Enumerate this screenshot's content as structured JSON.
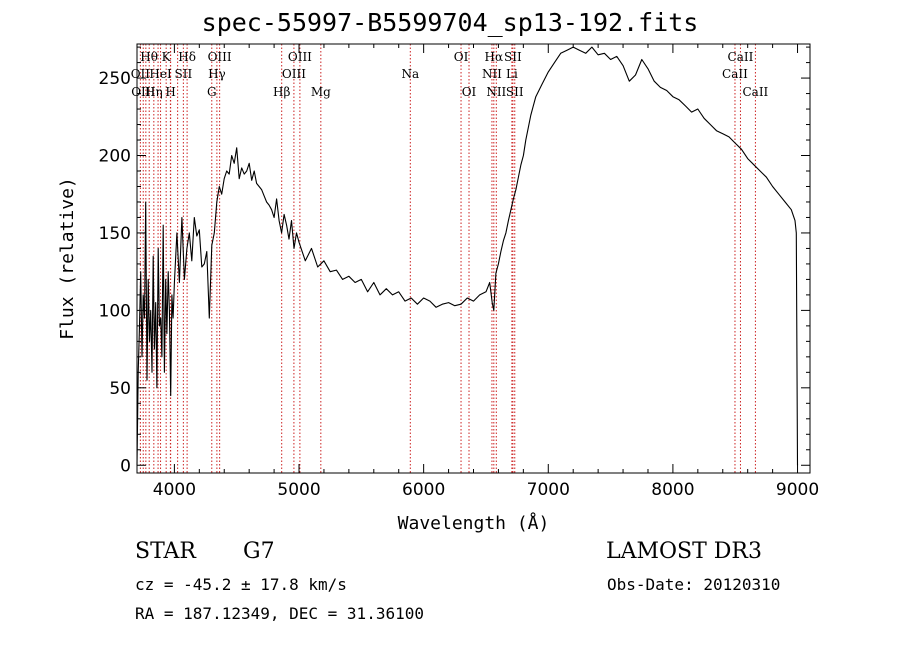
{
  "chart_data": {
    "type": "line",
    "title": "spec-55997-B5599704_sp13-192.fits",
    "xlabel": "Wavelength (Å)",
    "ylabel": "Flux (relative)",
    "xlim": [
      3700,
      9100
    ],
    "ylim": [
      -5,
      272
    ],
    "xticks": [
      4000,
      5000,
      6000,
      7000,
      8000,
      9000
    ],
    "yticks": [
      0,
      50,
      100,
      150,
      200,
      250
    ],
    "grid": false,
    "series": [
      {
        "name": "flux",
        "x": [
          3700,
          3710,
          3720,
          3730,
          3740,
          3750,
          3760,
          3770,
          3780,
          3790,
          3800,
          3810,
          3820,
          3830,
          3840,
          3850,
          3860,
          3870,
          3880,
          3890,
          3900,
          3910,
          3920,
          3930,
          3940,
          3950,
          3960,
          3970,
          3980,
          3990,
          4000,
          4020,
          4040,
          4060,
          4080,
          4100,
          4120,
          4140,
          4160,
          4180,
          4200,
          4220,
          4240,
          4260,
          4280,
          4300,
          4320,
          4340,
          4360,
          4380,
          4400,
          4420,
          4440,
          4460,
          4480,
          4500,
          4520,
          4540,
          4560,
          4580,
          4600,
          4620,
          4640,
          4660,
          4680,
          4700,
          4720,
          4740,
          4760,
          4780,
          4800,
          4820,
          4840,
          4860,
          4880,
          4900,
          4920,
          4940,
          4960,
          4980,
          5000,
          5050,
          5100,
          5150,
          5200,
          5250,
          5300,
          5350,
          5400,
          5450,
          5500,
          5550,
          5600,
          5650,
          5700,
          5750,
          5800,
          5850,
          5900,
          5950,
          6000,
          6050,
          6100,
          6150,
          6200,
          6250,
          6300,
          6350,
          6400,
          6450,
          6500,
          6530,
          6550,
          6563,
          6580,
          6600,
          6620,
          6640,
          6660,
          6680,
          6700,
          6720,
          6740,
          6760,
          6780,
          6800,
          6820,
          6840,
          6860,
          6880,
          6900,
          6950,
          7000,
          7050,
          7100,
          7150,
          7200,
          7250,
          7300,
          7350,
          7400,
          7450,
          7500,
          7550,
          7600,
          7650,
          7700,
          7750,
          7800,
          7850,
          7900,
          7950,
          8000,
          8050,
          8100,
          8150,
          8200,
          8250,
          8300,
          8350,
          8400,
          8450,
          8500,
          8550,
          8600,
          8650,
          8700,
          8750,
          8800,
          8850,
          8900,
          8950,
          8980,
          8990,
          9000
        ],
        "values": [
          0,
          60,
          90,
          125,
          70,
          110,
          95,
          170,
          55,
          120,
          80,
          100,
          60,
          135,
          75,
          105,
          50,
          140,
          90,
          95,
          70,
          155,
          60,
          120,
          85,
          125,
          100,
          45,
          110,
          95,
          118,
          150,
          118,
          160,
          120,
          140,
          150,
          132,
          160,
          148,
          152,
          128,
          130,
          138,
          95,
          142,
          150,
          170,
          180,
          175,
          185,
          190,
          188,
          200,
          195,
          205,
          185,
          192,
          188,
          190,
          195,
          184,
          190,
          182,
          180,
          178,
          174,
          170,
          168,
          165,
          160,
          172,
          158,
          150,
          162,
          155,
          146,
          158,
          140,
          150,
          144,
          132,
          140,
          128,
          132,
          125,
          126,
          120,
          122,
          118,
          120,
          112,
          118,
          110,
          114,
          110,
          112,
          106,
          108,
          104,
          108,
          106,
          102,
          104,
          105,
          103,
          104,
          108,
          106,
          110,
          112,
          118,
          105,
          100,
          124,
          130,
          138,
          145,
          150,
          158,
          165,
          172,
          178,
          186,
          194,
          200,
          210,
          218,
          226,
          232,
          238,
          246,
          254,
          260,
          266,
          268,
          270,
          268,
          266,
          270,
          265,
          266,
          262,
          264,
          258,
          248,
          252,
          262,
          256,
          248,
          244,
          242,
          238,
          236,
          232,
          228,
          230,
          224,
          220,
          216,
          214,
          212,
          208,
          204,
          198,
          194,
          190,
          186,
          180,
          175,
          170,
          165,
          158,
          150,
          0
        ],
        "color": "#000000"
      }
    ],
    "line_markers": {
      "color": "#cc2222",
      "wavelengths": [
        3727,
        3750,
        3771,
        3798,
        3835,
        3869,
        3889,
        3934,
        3968,
        3970,
        4026,
        4072,
        4102,
        4300,
        4341,
        4363,
        4861,
        4959,
        5007,
        5175,
        5893,
        6300,
        6364,
        6548,
        6563,
        6583,
        6708,
        6716,
        6731,
        8498,
        8542,
        8662
      ]
    },
    "annotations": [
      {
        "text": "Hθ",
        "wl": 3797,
        "row": 1
      },
      {
        "text": "K",
        "wl": 3934,
        "row": 1
      },
      {
        "text": "Hδ",
        "wl": 4102,
        "row": 1
      },
      {
        "text": "OIII",
        "wl": 4363,
        "row": 1
      },
      {
        "text": "OIII",
        "wl": 5007,
        "row": 1
      },
      {
        "text": "OI",
        "wl": 6300,
        "row": 1
      },
      {
        "text": "Hα",
        "wl": 6563,
        "row": 1
      },
      {
        "text": "SII",
        "wl": 6716,
        "row": 1
      },
      {
        "text": "CaII",
        "wl": 8542,
        "row": 1
      },
      {
        "text": "OII",
        "wl": 3727,
        "row": 2
      },
      {
        "text": "HeI",
        "wl": 3889,
        "row": 2
      },
      {
        "text": "SII",
        "wl": 4072,
        "row": 2
      },
      {
        "text": "Hγ",
        "wl": 4341,
        "row": 2
      },
      {
        "text": "OIII",
        "wl": 4959,
        "row": 2
      },
      {
        "text": "Na",
        "wl": 5893,
        "row": 2
      },
      {
        "text": "NII",
        "wl": 6548,
        "row": 2
      },
      {
        "text": "Li",
        "wl": 6708,
        "row": 2
      },
      {
        "text": "CaII",
        "wl": 8498,
        "row": 2
      },
      {
        "text": "OIII",
        "wl": 3750,
        "row": 3
      },
      {
        "text": "Hη",
        "wl": 3835,
        "row": 3
      },
      {
        "text": "H",
        "wl": 3970,
        "row": 3
      },
      {
        "text": "G",
        "wl": 4300,
        "row": 3
      },
      {
        "text": "Hβ",
        "wl": 4861,
        "row": 3
      },
      {
        "text": "Mg",
        "wl": 5175,
        "row": 3
      },
      {
        "text": "OI",
        "wl": 6364,
        "row": 3
      },
      {
        "text": "NII",
        "wl": 6583,
        "row": 3
      },
      {
        "text": "SII",
        "wl": 6731,
        "row": 3
      },
      {
        "text": "CaII",
        "wl": 8662,
        "row": 3
      }
    ]
  },
  "info": {
    "object_class": "STAR",
    "subclass": "G7",
    "survey": "LAMOST DR3",
    "redshift": "cz = -45.2 ± 17.8 km/s",
    "obs_date": "Obs-Date: 20120310",
    "coords": "RA = 187.12349, DEC =  31.36100"
  }
}
